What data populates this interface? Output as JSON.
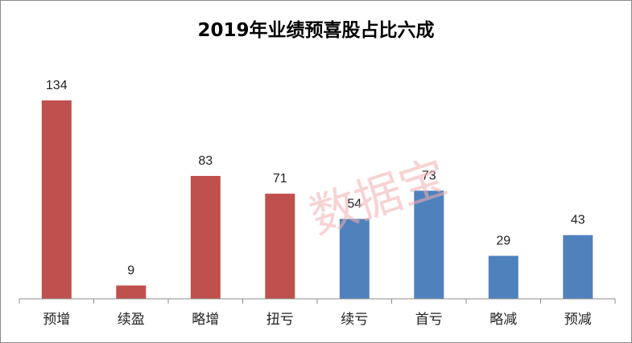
{
  "chart_data": {
    "type": "bar",
    "title": "2019年业绩预喜股占比六成",
    "categories": [
      "预增",
      "续盈",
      "略增",
      "扭亏",
      "续亏",
      "首亏",
      "略减",
      "预减"
    ],
    "values": [
      134,
      9,
      83,
      71,
      54,
      73,
      29,
      43
    ],
    "colors": [
      "#c0504d",
      "#c0504d",
      "#c0504d",
      "#c0504d",
      "#4f81bd",
      "#4f81bd",
      "#4f81bd",
      "#4f81bd"
    ],
    "ylim": [
      0,
      134
    ],
    "grid": false,
    "legend": "none",
    "watermark": "数据宝"
  }
}
